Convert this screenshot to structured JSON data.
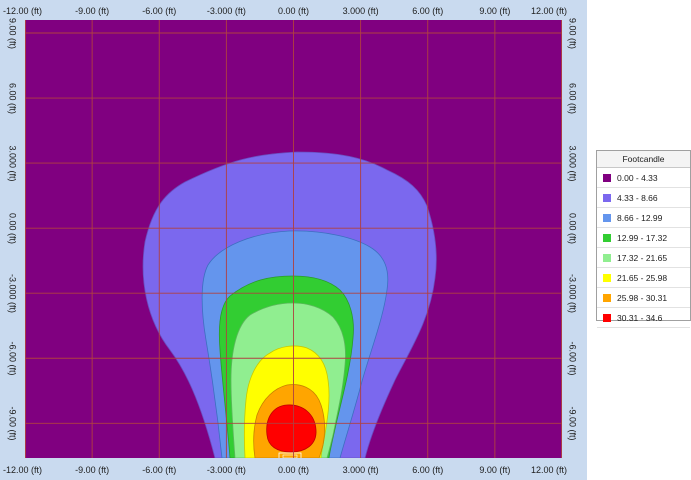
{
  "plot": {
    "x_ticks": [
      "-12.00 (ft)",
      "-9.00 (ft)",
      "-6.00 (ft)",
      "-3.000 (ft)",
      "0.00 (ft)",
      "3.000 (ft)",
      "6.00 (ft)",
      "9.00 (ft)",
      "12.00 (ft)"
    ],
    "y_ticks": [
      "9.00 (ft)",
      "6.00 (ft)",
      "3.000 (ft)",
      "0.00 (ft)",
      "-3.000 (ft)",
      "-6.00 (ft)",
      "-9.00 (ft)"
    ],
    "x_range": [
      -12,
      12
    ],
    "y_range": [
      -10.6,
      9.6
    ],
    "background_color": "#800080",
    "grid_color": "#b04040"
  },
  "legend": {
    "title": "Footcandle",
    "items": [
      {
        "label": "0.00 - 4.33",
        "color": "#800080"
      },
      {
        "label": "4.33 - 8.66",
        "color": "#7b68ee"
      },
      {
        "label": "8.66 - 12.99",
        "color": "#6495ed"
      },
      {
        "label": "12.99 - 17.32",
        "color": "#32cd32"
      },
      {
        "label": "17.32 - 21.65",
        "color": "#90ee90"
      },
      {
        "label": "21.65 - 25.98",
        "color": "#ffff00"
      },
      {
        "label": "25.98 - 30.31",
        "color": "#ffa500"
      },
      {
        "label": "30.31 - 34.6",
        "color": "#ff0000"
      }
    ]
  }
}
